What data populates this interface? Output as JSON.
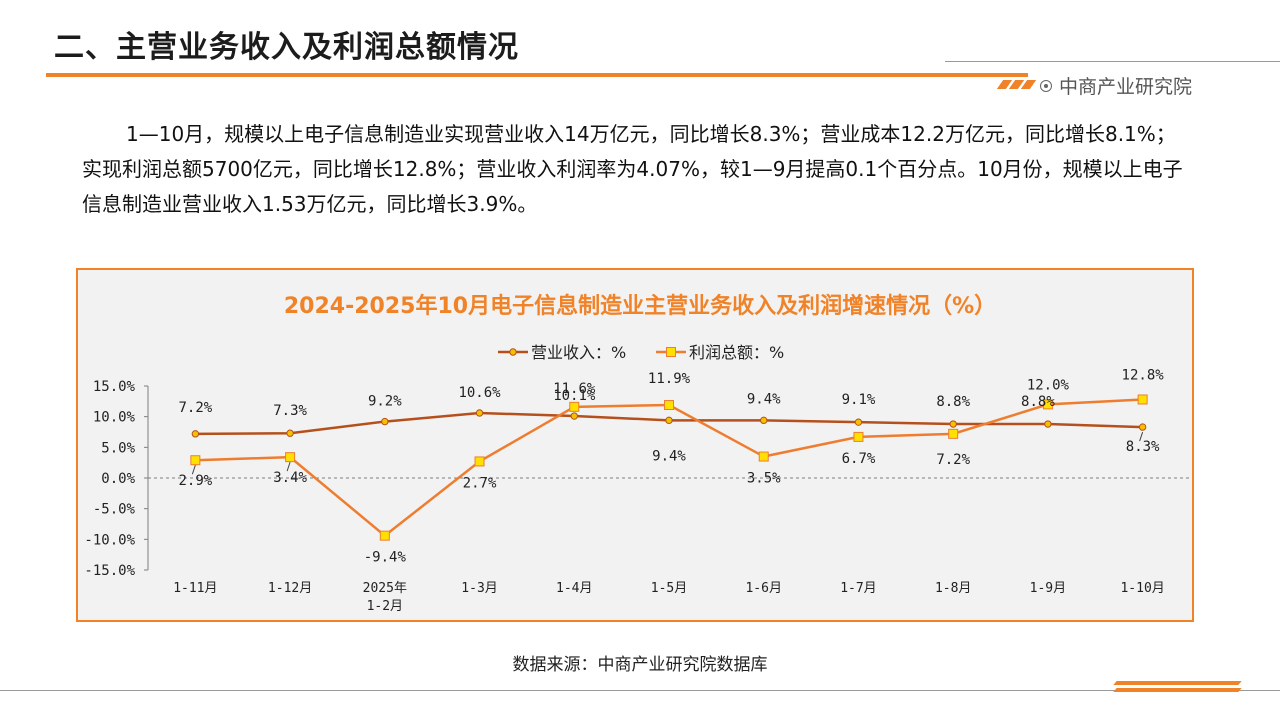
{
  "page": {
    "title": "二、主营业务收入及利润总额情况",
    "brand": "中商产业研究院",
    "paragraph": "1—10月，规模以上电子信息制造业实现营业收入14万亿元，同比增长8.3%；营业成本12.2万亿元，同比增长8.1%；实现利润总额5700亿元，同比增长12.8%；营业收入利润率为4.07%，较1—9月提高0.1个百分点。10月份，规模以上电子信息制造业营业收入1.53万亿元，同比增长3.9%。",
    "source": "数据来源：中商产业研究院数据库"
  },
  "colors": {
    "accent": "#f08228",
    "revenue_line": "#b5501c",
    "revenue_marker": "#f5c000",
    "profit_line": "#ee7d30",
    "profit_marker": "#ffe000"
  },
  "chart_data": {
    "type": "line",
    "title": "2024-2025年10月电子信息制造业主营业务收入及利润增速情况（%）",
    "categories": [
      "1-11月",
      "1-12月",
      "2025年\n1-2月",
      "1-3月",
      "1-4月",
      "1-5月",
      "1-6月",
      "1-7月",
      "1-8月",
      "1-9月",
      "1-10月"
    ],
    "series": [
      {
        "name": "营业收入：%",
        "values": [
          7.2,
          7.3,
          9.2,
          10.6,
          10.1,
          9.4,
          9.4,
          9.1,
          8.8,
          8.8,
          8.3
        ],
        "labels": [
          "7.2%",
          "7.3%",
          "9.2%",
          "10.6%",
          "10.1%",
          "9.4%",
          "9.4%",
          "9.1%",
          "8.8%",
          "8.8%",
          "8.3%"
        ]
      },
      {
        "name": "利润总额：%",
        "values": [
          2.9,
          3.4,
          -9.4,
          2.7,
          11.6,
          11.9,
          3.5,
          6.7,
          7.2,
          12.0,
          12.8
        ],
        "labels": [
          "2.9%",
          "3.4%",
          "-9.4%",
          "2.7%",
          "11.6%",
          "11.9%",
          "3.5%",
          "6.7%",
          "7.2%",
          "12.0%",
          "12.8%"
        ]
      }
    ],
    "yticks": [
      "15.0%",
      "10.0%",
      "5.0%",
      "0.0%",
      "-5.0%",
      "-10.0%",
      "-15.0%"
    ],
    "ylim": [
      -15,
      15
    ],
    "legend": "top-center",
    "grid": false
  }
}
